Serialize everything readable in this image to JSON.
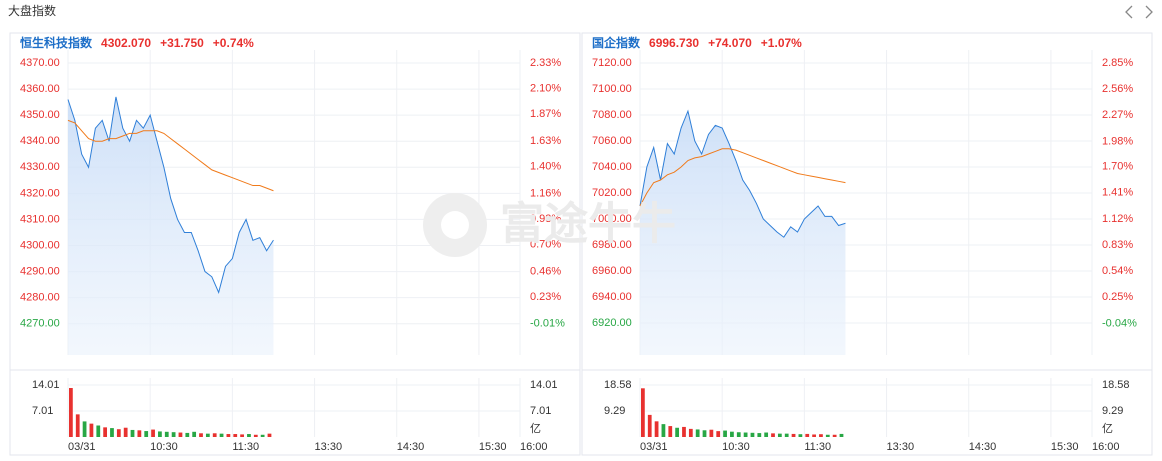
{
  "header": {
    "title": "大盘指数"
  },
  "watermark": "富途牛牛",
  "chart_data": [
    {
      "type": "line",
      "title": "恒生科技指数",
      "price": "4302.070",
      "change": "+31.750",
      "change_pct": "+0.74%",
      "x": [
        0,
        5,
        10,
        15,
        20,
        25,
        30,
        35,
        40,
        45,
        50,
        55,
        60,
        65,
        70,
        75,
        80,
        85,
        90,
        95,
        100,
        105,
        110,
        115,
        120,
        125,
        130,
        135,
        140,
        145,
        150
      ],
      "xlim": [
        0,
        330
      ],
      "xticks": [
        {
          "value": 0,
          "label": "03/31"
        },
        {
          "value": 60,
          "label": "10:30"
        },
        {
          "value": 120,
          "label": "11:30"
        },
        {
          "value": 180,
          "label": "13:30"
        },
        {
          "value": 240,
          "label": "14:30"
        },
        {
          "value": 300,
          "label": "15:30"
        },
        {
          "value": 330,
          "label": "16:00"
        }
      ],
      "ylim": [
        4258,
        4370
      ],
      "yticks": [
        {
          "value": 4370,
          "label": "4370.00"
        },
        {
          "value": 4360,
          "label": "4360.00"
        },
        {
          "value": 4350,
          "label": "4350.00"
        },
        {
          "value": 4340,
          "label": "4340.00"
        },
        {
          "value": 4330,
          "label": "4330.00"
        },
        {
          "value": 4320,
          "label": "4320.00"
        },
        {
          "value": 4310,
          "label": "4310.00"
        },
        {
          "value": 4300,
          "label": "4300.00"
        },
        {
          "value": 4290,
          "label": "4290.00"
        },
        {
          "value": 4280,
          "label": "4280.00"
        },
        {
          "value": 4270,
          "label": "4270.00"
        }
      ],
      "y2lim": [
        -0.29,
        2.33
      ],
      "y2ticks": [
        {
          "value": 2.33,
          "label": "2.33%"
        },
        {
          "value": 2.1,
          "label": "2.10%"
        },
        {
          "value": 1.87,
          "label": "1.87%"
        },
        {
          "value": 1.63,
          "label": "1.63%"
        },
        {
          "value": 1.4,
          "label": "1.40%"
        },
        {
          "value": 1.16,
          "label": "1.16%"
        },
        {
          "value": 0.93,
          "label": "0.93%"
        },
        {
          "value": 0.7,
          "label": "0.70%"
        },
        {
          "value": 0.46,
          "label": "0.46%"
        },
        {
          "value": 0.23,
          "label": "0.23%"
        },
        {
          "value": -0.01,
          "label": "-0.01%"
        }
      ],
      "series": [
        {
          "color": "#2f7fd8",
          "values": [
            4356,
            4348,
            4335,
            4330,
            4345,
            4348,
            4340,
            4357,
            4345,
            4340,
            4348,
            4345,
            4350,
            4340,
            4330,
            4318,
            4310,
            4305,
            4305,
            4298,
            4290,
            4288,
            4282,
            4292,
            4295,
            4305,
            4310,
            4302,
            4303,
            4298,
            4302.07
          ]
        },
        {
          "color": "#f07a1a",
          "values": [
            4348,
            4347,
            4344,
            4341,
            4340,
            4340,
            4341,
            4341,
            4342,
            4343,
            4343,
            4344,
            4344,
            4344,
            4343,
            4341,
            4339,
            4337,
            4335,
            4333,
            4331,
            4329,
            4328,
            4327,
            4326,
            4325,
            4324,
            4323,
            4323,
            4322,
            4321
          ]
        }
      ],
      "volume": {
        "ylim": [
          0,
          14.01
        ],
        "yticks": [
          7.01,
          14.01
        ],
        "unit": "亿",
        "values": [
          13.2,
          6.1,
          4.2,
          3.6,
          3.1,
          2.6,
          2.4,
          2.1,
          2.5,
          1.9,
          1.8,
          1.6,
          2.0,
          1.5,
          1.4,
          1.3,
          1.2,
          1.1,
          1.4,
          1.0,
          0.9,
          1.0,
          0.9,
          0.8,
          0.8,
          0.7,
          0.8,
          0.6,
          0.6,
          0.9
        ],
        "colors": [
          "#e8312f",
          "#e8312f",
          "#28a745",
          "#e8312f",
          "#28a745",
          "#e8312f",
          "#28a745",
          "#e8312f",
          "#e8312f",
          "#28a745",
          "#e8312f",
          "#28a745",
          "#e8312f",
          "#28a745",
          "#28a745",
          "#28a745",
          "#e8312f",
          "#28a745",
          "#28a745",
          "#e8312f",
          "#28a745",
          "#e8312f",
          "#28a745",
          "#e8312f",
          "#e8312f",
          "#e8312f",
          "#28a745",
          "#e8312f",
          "#28a745",
          "#e8312f"
        ]
      }
    },
    {
      "type": "line",
      "title": "国企指数",
      "price": "6996.730",
      "change": "+74.070",
      "change_pct": "+1.07%",
      "x": [
        0,
        5,
        10,
        15,
        20,
        25,
        30,
        35,
        40,
        45,
        50,
        55,
        60,
        65,
        70,
        75,
        80,
        85,
        90,
        95,
        100,
        105,
        110,
        115,
        120,
        125,
        130,
        135,
        140,
        145,
        150
      ],
      "xlim": [
        0,
        330
      ],
      "xticks": [
        {
          "value": 0,
          "label": "03/31"
        },
        {
          "value": 60,
          "label": "10:30"
        },
        {
          "value": 120,
          "label": "11:30"
        },
        {
          "value": 180,
          "label": "13:30"
        },
        {
          "value": 240,
          "label": "14:30"
        },
        {
          "value": 300,
          "label": "15:30"
        },
        {
          "value": 330,
          "label": "16:00"
        }
      ],
      "ylim": [
        6895.4,
        7120
      ],
      "yticks": [
        {
          "value": 7120,
          "label": "7120.00"
        },
        {
          "value": 7100,
          "label": "7100.00"
        },
        {
          "value": 7080,
          "label": "7080.00"
        },
        {
          "value": 7060,
          "label": "7060.00"
        },
        {
          "value": 7040,
          "label": "7040.00"
        },
        {
          "value": 7020,
          "label": "7020.00"
        },
        {
          "value": 7000,
          "label": "7000.00"
        },
        {
          "value": 6980,
          "label": "6980.00"
        },
        {
          "value": 6960,
          "label": "6960.00"
        },
        {
          "value": 6940,
          "label": "6940.00"
        },
        {
          "value": 6920,
          "label": "6920.00"
        }
      ],
      "y2lim": [
        -0.39,
        2.85
      ],
      "y2ticks": [
        {
          "value": 2.85,
          "label": "2.85%"
        },
        {
          "value": 2.56,
          "label": "2.56%"
        },
        {
          "value": 2.27,
          "label": "2.27%"
        },
        {
          "value": 1.98,
          "label": "1.98%"
        },
        {
          "value": 1.7,
          "label": "1.70%"
        },
        {
          "value": 1.41,
          "label": "1.41%"
        },
        {
          "value": 1.12,
          "label": "1.12%"
        },
        {
          "value": 0.83,
          "label": "0.83%"
        },
        {
          "value": 0.54,
          "label": "0.54%"
        },
        {
          "value": 0.25,
          "label": "0.25%"
        },
        {
          "value": -0.04,
          "label": "-0.04%"
        }
      ],
      "series": [
        {
          "color": "#2f7fd8",
          "values": [
            7010,
            7040,
            7055,
            7030,
            7058,
            7050,
            7070,
            7083,
            7060,
            7050,
            7065,
            7072,
            7070,
            7058,
            7045,
            7030,
            7022,
            7012,
            7000,
            6995,
            6990,
            6986,
            6994,
            6990,
            7000,
            7005,
            7010,
            7002,
            7002,
            6995,
            6996.73
          ]
        },
        {
          "color": "#f07a1a",
          "values": [
            7010,
            7020,
            7028,
            7030,
            7034,
            7036,
            7040,
            7045,
            7047,
            7048,
            7050,
            7052,
            7054,
            7054,
            7053,
            7051,
            7049,
            7047,
            7045,
            7043,
            7041,
            7039,
            7037,
            7035,
            7034,
            7033,
            7032,
            7031,
            7030,
            7029,
            7028
          ]
        }
      ],
      "volume": {
        "ylim": [
          0,
          18.58
        ],
        "yticks": [
          9.29,
          18.58
        ],
        "unit": "亿",
        "values": [
          17.4,
          7.9,
          5.6,
          4.6,
          3.9,
          3.3,
          3.6,
          2.9,
          2.7,
          2.4,
          2.6,
          2.1,
          2.3,
          1.9,
          1.7,
          1.6,
          1.5,
          1.4,
          1.6,
          1.3,
          1.2,
          1.2,
          1.1,
          1.0,
          1.1,
          0.9,
          1.0,
          0.8,
          0.8,
          1.1
        ],
        "colors": [
          "#e8312f",
          "#e8312f",
          "#e8312f",
          "#28a745",
          "#e8312f",
          "#28a745",
          "#e8312f",
          "#e8312f",
          "#28a745",
          "#28a745",
          "#e8312f",
          "#e8312f",
          "#28a745",
          "#28a745",
          "#28a745",
          "#28a745",
          "#28a745",
          "#28a745",
          "#28a745",
          "#e8312f",
          "#28a745",
          "#28a745",
          "#e8312f",
          "#28a745",
          "#e8312f",
          "#e8312f",
          "#e8312f",
          "#28a745",
          "#e8312f",
          "#28a745"
        ]
      }
    }
  ]
}
